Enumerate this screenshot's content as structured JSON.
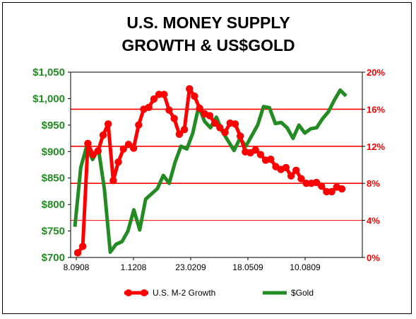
{
  "chart_data": {
    "type": "line",
    "title_line1": "U.S. MONEY SUPPLY",
    "title_line2": "GROWTH & US$GOLD",
    "x_tick_labels": [
      "8.0908",
      "1.1208",
      "23.0209",
      "18.0509",
      "10.0809"
    ],
    "y_left_tick_labels": [
      "$700",
      "$750",
      "$800",
      "$850",
      "$900",
      "$950",
      "$1,000",
      "$1,050"
    ],
    "y_left_range": [
      700,
      1050
    ],
    "y_right_tick_labels": [
      "0%",
      "4%",
      "8%",
      "12%",
      "16%",
      "20%"
    ],
    "y_right_range": [
      0,
      20
    ],
    "grid": "horizontal",
    "legend_position": "bottom",
    "colors": {
      "m2": "#ff0000",
      "gold": "#228b22",
      "grid": "#ff0000"
    },
    "series": [
      {
        "name": "U.S. M-2 Growth",
        "axis": "right",
        "values": [
          0.5,
          1.2,
          12.3,
          11.1,
          11.5,
          13.2,
          14.4,
          8.3,
          10.3,
          11.7,
          12.2,
          11.8,
          14.3,
          16.0,
          16.2,
          17.1,
          17.6,
          17.6,
          15.9,
          15.0,
          13.3,
          13.8,
          18.2,
          17.4,
          16.1,
          15.5,
          15.3,
          14.5,
          14.0,
          13.5,
          14.5,
          14.4,
          13.1,
          11.4,
          11.3,
          11.6,
          11.1,
          10.5,
          10.6,
          9.8,
          9.5,
          9.7,
          8.8,
          9.4,
          8.5,
          8.0,
          8.0,
          8.1,
          7.7,
          7.1,
          7.1,
          7.6,
          7.4
        ]
      },
      {
        "name": "$Gold",
        "axis": "left",
        "values": [
          758,
          870,
          910,
          885,
          905,
          830,
          710,
          725,
          730,
          750,
          790,
          752,
          810,
          820,
          830,
          855,
          840,
          880,
          910,
          905,
          935,
          985,
          957,
          945,
          965,
          938,
          920,
          902,
          925,
          910,
          930,
          950,
          985,
          983,
          953,
          955,
          945,
          925,
          950,
          935,
          943,
          945,
          962,
          975,
          997,
          1016,
          1005
        ]
      }
    ]
  },
  "legend": {
    "m2_label": "U.S. M-2 Growth",
    "gold_label": "$Gold"
  }
}
